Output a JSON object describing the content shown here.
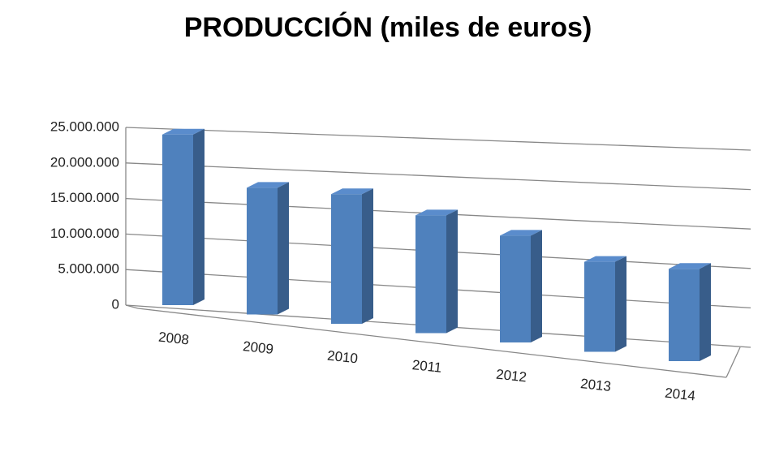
{
  "chart_data": {
    "type": "bar3d",
    "title": "PRODUCCIÓN (miles de euros)",
    "categories": [
      "2008",
      "2009",
      "2010",
      "2011",
      "2012",
      "2013",
      "2014"
    ],
    "values": [
      24000000,
      17500000,
      17600000,
      15700000,
      14000000,
      11600000,
      11700000
    ],
    "color": "#4f81bd",
    "ylim": [
      0,
      25000000
    ],
    "yticks": [
      0,
      {
        "value": 5000000,
        "label": "5.000.000"
      },
      {
        "value": 10000000,
        "label": "10.000.000"
      },
      {
        "value": 15000000,
        "label": "15.000.000"
      },
      {
        "value": 20000000,
        "label": "20.000.000"
      },
      {
        "value": 25000000,
        "label": "25.000.000"
      }
    ],
    "grid": true
  }
}
